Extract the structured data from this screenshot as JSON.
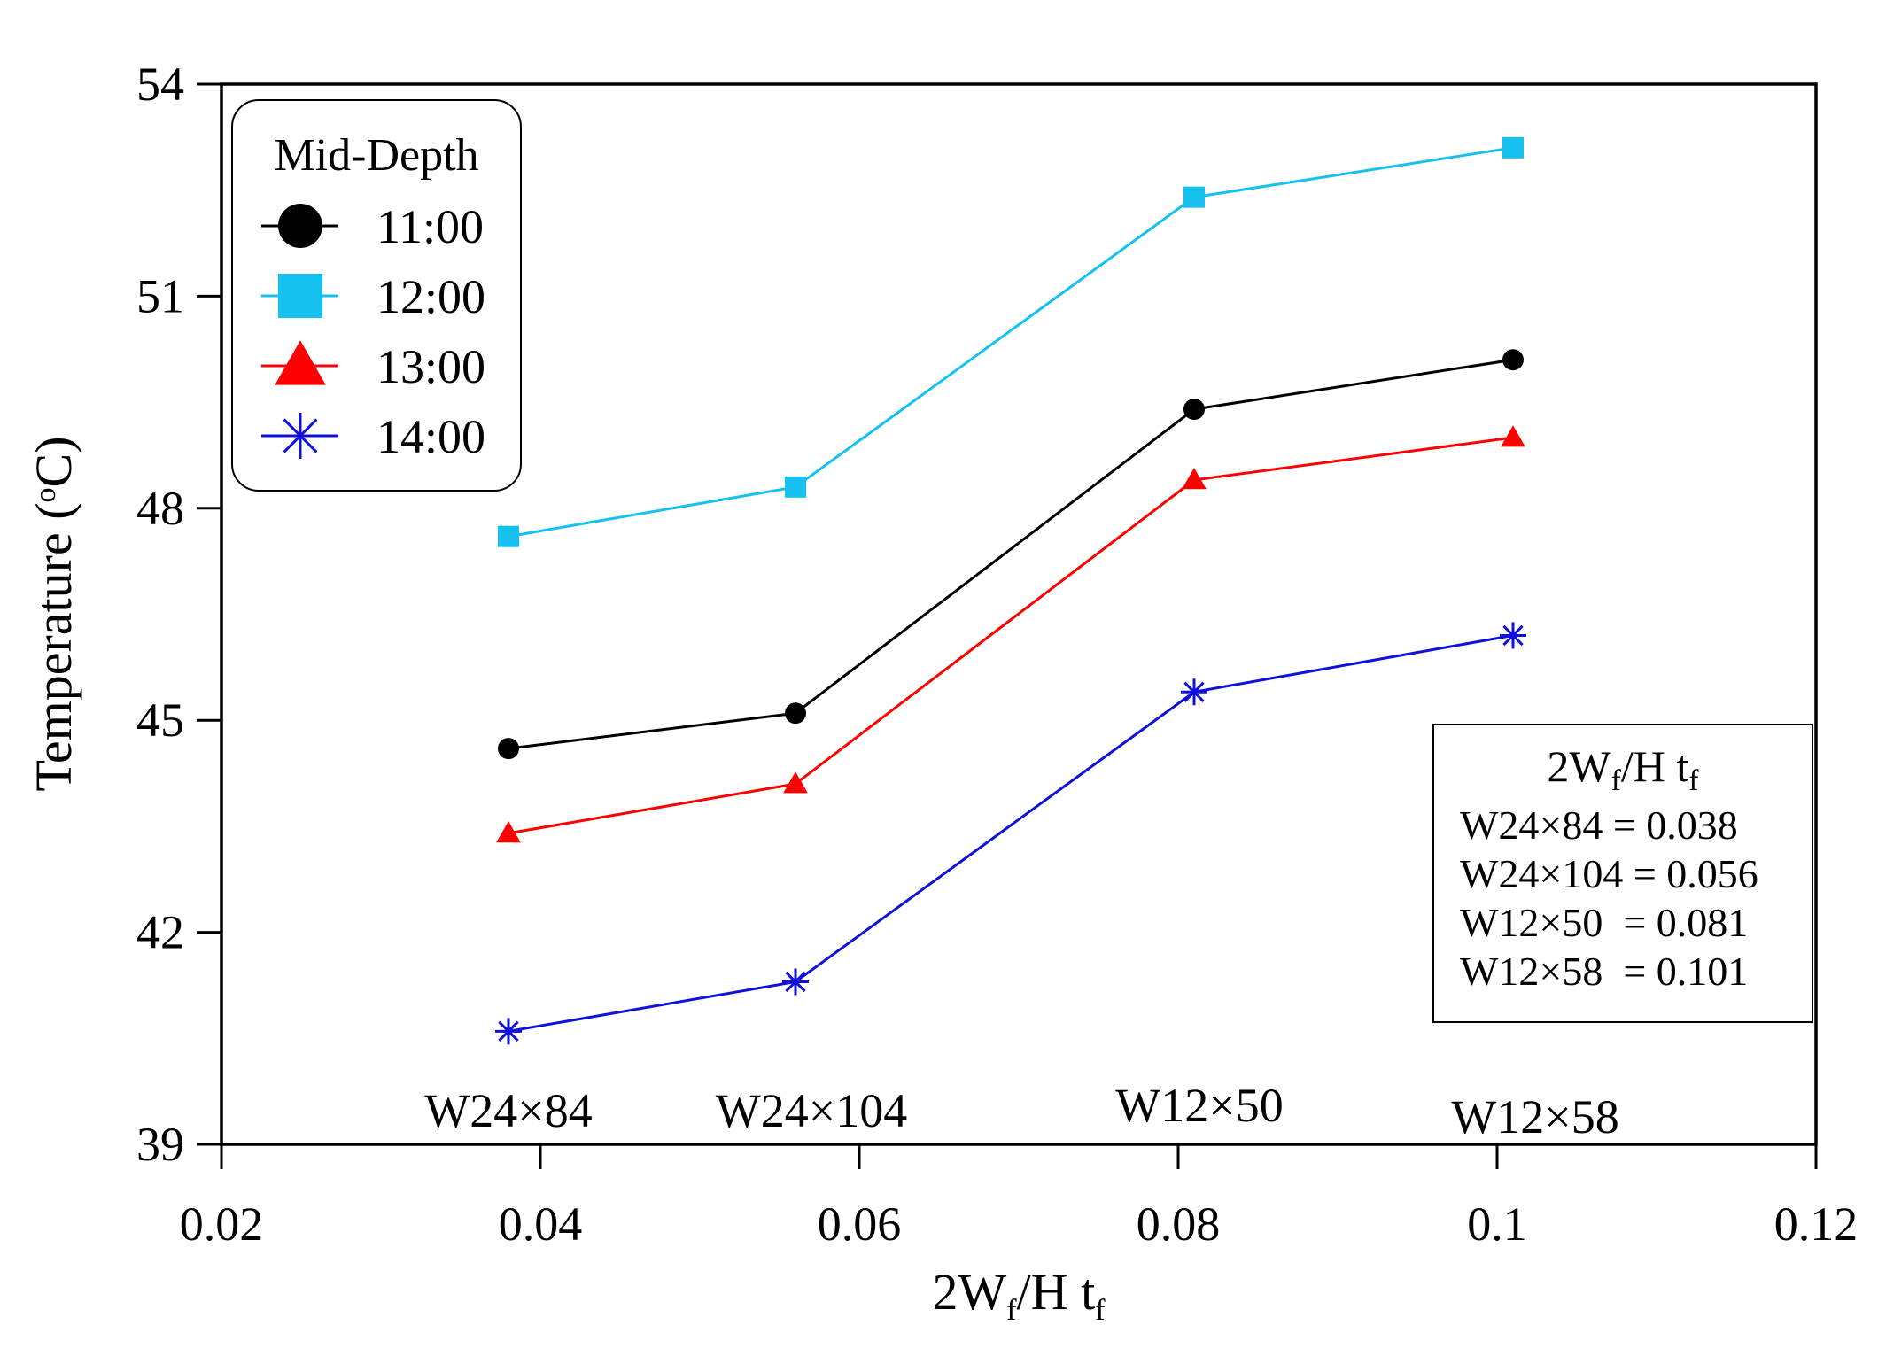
{
  "chart_data": {
    "type": "line",
    "xlabel": {
      "main": "2W",
      "sub1": "f",
      "mid": "/H t",
      "sub2": "f"
    },
    "ylabel": "Temperature (°C)",
    "ylabel_parts": {
      "pre": "Temperature (",
      "sup": "o",
      "post": "C)"
    },
    "xlim": [
      0.02,
      0.12
    ],
    "ylim": [
      39,
      54
    ],
    "x_ticks": [
      0.02,
      0.04,
      0.06,
      0.08,
      0.1,
      0.12
    ],
    "x_tick_labels": [
      "0.02",
      "0.04",
      "0.06",
      "0.08",
      "0.1",
      "0.12"
    ],
    "y_ticks": [
      39,
      42,
      45,
      48,
      51,
      54
    ],
    "y_tick_labels": [
      "39",
      "42",
      "45",
      "48",
      "51",
      "54"
    ],
    "x": [
      0.038,
      0.056,
      0.081,
      0.101
    ],
    "section_labels": [
      {
        "x": 0.038,
        "text": "W24×84"
      },
      {
        "x": 0.056,
        "text": "W24×104"
      },
      {
        "x": 0.081,
        "text": "W12×50"
      },
      {
        "x": 0.101,
        "text": "W12×58"
      }
    ],
    "legend_title": "Mid-Depth",
    "legend_position": "top-left",
    "series": [
      {
        "name": "11:00",
        "color": "#000000",
        "marker": "circle",
        "values": [
          44.6,
          45.1,
          49.4,
          50.1
        ]
      },
      {
        "name": "12:00",
        "color": "#16c1f0",
        "marker": "square",
        "values": [
          47.6,
          48.3,
          52.4,
          53.1
        ]
      },
      {
        "name": "13:00",
        "color": "#ff0000",
        "marker": "triangle",
        "values": [
          43.4,
          44.1,
          48.4,
          49.0
        ]
      },
      {
        "name": "14:00",
        "color": "#1010dd",
        "marker": "asterisk",
        "values": [
          40.6,
          41.3,
          45.4,
          46.2
        ]
      }
    ],
    "info_box": {
      "title": {
        "main": "2W",
        "sub1": "f",
        "mid": "/H t",
        "sub2": "f"
      },
      "lines": [
        "W24×84 = 0.038",
        "W24×104 = 0.056",
        "W12×50  = 0.081",
        "W12×58  = 0.101"
      ],
      "position": "bottom-right"
    }
  }
}
